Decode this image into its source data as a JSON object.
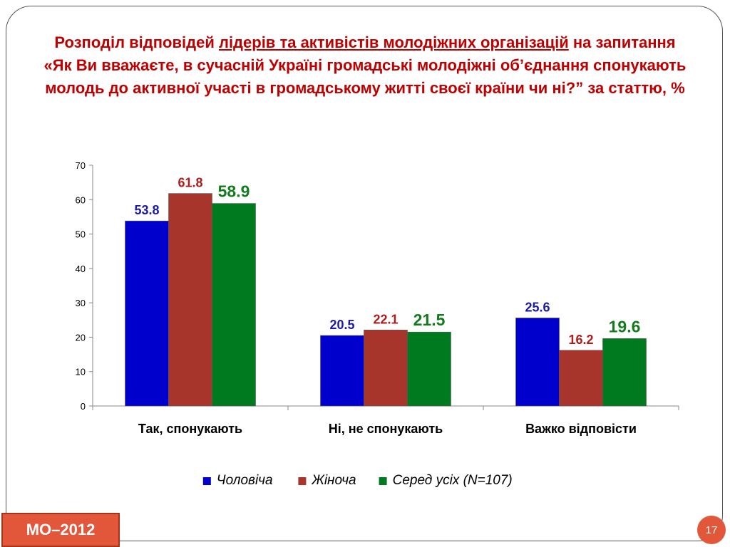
{
  "title": {
    "part1": "Розподіл відповідей ",
    "part2_underlined": "лідерів та активістів молодіжних організацій",
    "part3": " на запитання «Як Ви вважаєте, в сучасній Україні громадські молодіжні об’єднання спонукають молодь до активної участі в громадському житті своєї країни чи ні?” за статтю, %"
  },
  "chart_data": {
    "type": "bar",
    "title": "",
    "xlabel": "",
    "ylabel": "",
    "ylim": [
      0,
      70
    ],
    "yticks": [
      0,
      10,
      20,
      30,
      40,
      50,
      60,
      70
    ],
    "grid": false,
    "legend_position": "bottom",
    "categories": [
      "Так, спонукають",
      "Ні, не спонукають",
      "Важко відповісти"
    ],
    "series": [
      {
        "name": "Чоловіча",
        "values": [
          53.8,
          20.5,
          25.6
        ],
        "color": "#0000cc",
        "label_color": "#1a1aa8"
      },
      {
        "name": "Жіноча",
        "values": [
          61.8,
          22.1,
          16.2
        ],
        "color": "#a8352c",
        "label_color": "#b01c1c"
      },
      {
        "name": "Серед усіх (N=107)",
        "values": [
          58.9,
          21.5,
          19.6
        ],
        "color": "#007a1e",
        "label_color": "#147a1e"
      }
    ]
  },
  "badge": "МО–2012",
  "page_number": "17"
}
